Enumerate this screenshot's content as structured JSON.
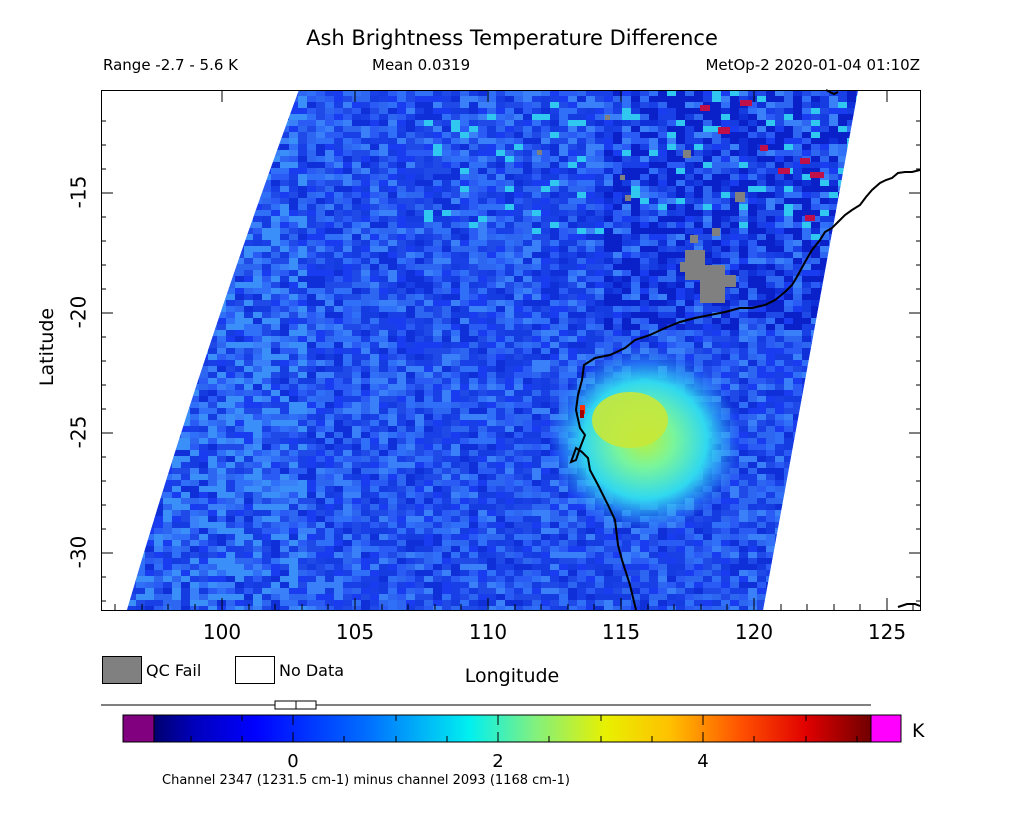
{
  "header": {
    "title": "Ash Brightness Temperature Difference",
    "range_text": "Range -2.7 - 5.6 K",
    "mean_text": "Mean 0.0319",
    "meta_text": "MetOp-2 2020-01-04 01:10Z"
  },
  "axes": {
    "ylabel": "Latitude",
    "xlabel": "Longitude",
    "lat_ticks": [
      "-15",
      "-20",
      "-25",
      "-30"
    ],
    "lon_ticks": [
      "100",
      "105",
      "110",
      "115",
      "120",
      "125"
    ],
    "lon_range": [
      95.8,
      126.5
    ],
    "lat_range": [
      -32.4,
      -10.8
    ]
  },
  "legend": {
    "qc_fail_label": "QC Fail",
    "no_data_label": "No Data",
    "qc_fail_color": "#808080",
    "no_data_color": "#ffffff"
  },
  "colorbar": {
    "unit": "K",
    "ticks": [
      "0",
      "2",
      "4"
    ],
    "below_color": "#800080",
    "above_color": "#ff00ff",
    "footnote": "Channel 2347 (1231.5 cm-1) minus channel 2093 (1168 cm-1)"
  },
  "map": {
    "background_color": "#1c4cf2",
    "plume_center_lat_lon": [
      -24.5,
      115.5
    ],
    "coastline": "Western Australia"
  }
}
